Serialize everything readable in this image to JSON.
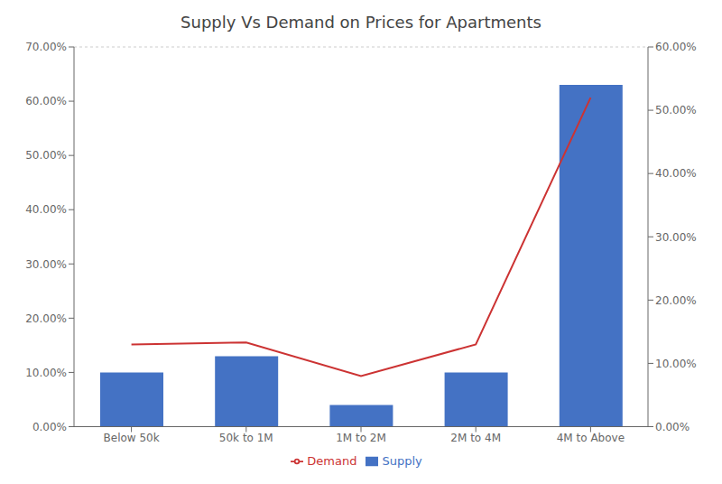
{
  "chart_data": {
    "type": "bar",
    "title": "Supply Vs Demand on Prices for Apartments",
    "categories": [
      "Below 50k",
      "50k to 1M",
      "1M to 2M",
      "2M to 4M",
      "4M to Above"
    ],
    "series": [
      {
        "name": "Supply",
        "type": "bar",
        "color": "#4472C4",
        "values": [
          0.1,
          0.13,
          0.04,
          0.1,
          0.63
        ]
      },
      {
        "name": "Demand",
        "type": "line",
        "color": "#CC3333",
        "axis": "y2",
        "values": [
          0.13,
          0.133,
          0.08,
          0.13,
          0.52
        ]
      }
    ],
    "ylim": [
      0.0,
      0.7
    ],
    "yticks": [
      {
        "value": 0.0,
        "label": "0.00%"
      },
      {
        "value": 0.1,
        "label": "10.00%"
      },
      {
        "value": 0.2,
        "label": "20.00%"
      },
      {
        "value": 0.3,
        "label": "30.00%"
      },
      {
        "value": 0.4,
        "label": "40.00%"
      },
      {
        "value": 0.5,
        "label": "50.00%"
      },
      {
        "value": 0.6,
        "label": "60.00%"
      },
      {
        "value": 0.7,
        "label": "70.00%"
      }
    ],
    "y2lim": [
      0.0,
      0.6
    ],
    "y2ticks": [
      {
        "value": 0.0,
        "label": "0.00%"
      },
      {
        "value": 0.1,
        "label": "10.00%"
      },
      {
        "value": 0.2,
        "label": "20.00%"
      },
      {
        "value": 0.3,
        "label": "30.00%"
      },
      {
        "value": 0.4,
        "label": "40.00%"
      },
      {
        "value": 0.5,
        "label": "50.00%"
      },
      {
        "value": 0.6,
        "label": "60.00%"
      }
    ],
    "grid": true,
    "legend": "bottom"
  }
}
